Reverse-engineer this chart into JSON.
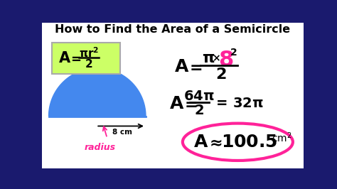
{
  "title": "How to Find the Area of a Semicircle",
  "title_fontsize": 11.5,
  "bg_color": "#1a1a6e",
  "semicircle_color": "#4488ee",
  "pink_color": "#ff2299",
  "black_color": "#000000",
  "white_color": "#ffffff",
  "green_box_color": "#ccff66",
  "formula_box_color": "#ccff66"
}
